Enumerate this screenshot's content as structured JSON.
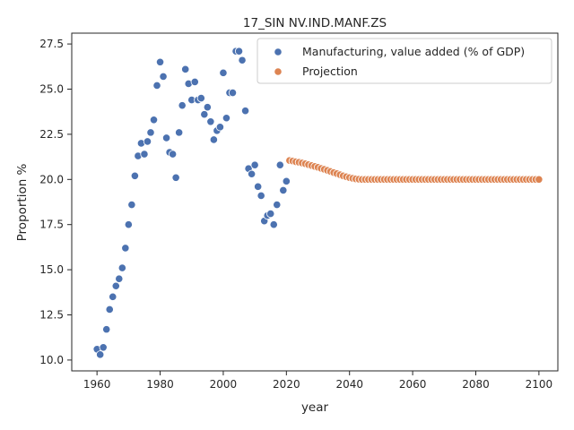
{
  "chart_data": {
    "type": "scatter",
    "title": "17_SIN NV.IND.MANF.ZS",
    "xlabel": "year",
    "ylabel": "Proportion %",
    "xlim": [
      1952,
      2106
    ],
    "ylim": [
      9.4,
      28.1
    ],
    "xticks": [
      1960,
      1980,
      2000,
      2020,
      2040,
      2060,
      2080,
      2100
    ],
    "yticks": [
      10.0,
      12.5,
      15.0,
      17.5,
      20.0,
      22.5,
      25.0,
      27.5
    ],
    "grid": false,
    "legend_position": "top-right",
    "series": [
      {
        "name": "Manufacturing, value added (% of GDP)",
        "color": "#4c72b0",
        "x": [
          1960,
          1961,
          1962,
          1963,
          1964,
          1965,
          1966,
          1967,
          1968,
          1969,
          1970,
          1971,
          1972,
          1973,
          1974,
          1975,
          1976,
          1977,
          1978,
          1979,
          1980,
          1981,
          1982,
          1983,
          1984,
          1985,
          1986,
          1987,
          1988,
          1989,
          1990,
          1991,
          1992,
          1993,
          1994,
          1995,
          1996,
          1997,
          1998,
          1999,
          2000,
          2001,
          2002,
          2003,
          2004,
          2005,
          2006,
          2007,
          2008,
          2009,
          2010,
          2011,
          2012,
          2013,
          2014,
          2015,
          2016,
          2017,
          2018,
          2019,
          2020
        ],
        "y": [
          10.6,
          10.3,
          10.7,
          11.7,
          12.8,
          13.5,
          14.1,
          14.5,
          15.1,
          16.2,
          17.5,
          18.6,
          20.2,
          21.3,
          22.0,
          21.4,
          22.1,
          22.6,
          23.3,
          25.2,
          26.5,
          25.7,
          22.3,
          21.5,
          21.4,
          20.1,
          22.6,
          24.1,
          26.1,
          25.3,
          24.4,
          25.4,
          24.4,
          24.5,
          23.6,
          24.0,
          23.2,
          22.2,
          22.7,
          22.9,
          25.9,
          23.4,
          24.8,
          24.8,
          27.1,
          27.1,
          26.6,
          23.8,
          20.6,
          20.3,
          20.8,
          19.6,
          19.1,
          17.7,
          18.0,
          18.1,
          17.5,
          18.6,
          20.8,
          19.4,
          19.9
        ]
      },
      {
        "name": "Projection",
        "color": "#dd8452",
        "x": [
          2021,
          2022,
          2023,
          2024,
          2025,
          2026,
          2027,
          2028,
          2029,
          2030,
          2031,
          2032,
          2033,
          2034,
          2035,
          2036,
          2037,
          2038,
          2039,
          2040,
          2041,
          2042,
          2043,
          2044,
          2045,
          2046,
          2047,
          2048,
          2049,
          2050,
          2051,
          2052,
          2053,
          2054,
          2055,
          2056,
          2057,
          2058,
          2059,
          2060,
          2061,
          2062,
          2063,
          2064,
          2065,
          2066,
          2067,
          2068,
          2069,
          2070,
          2071,
          2072,
          2073,
          2074,
          2075,
          2076,
          2077,
          2078,
          2079,
          2080,
          2081,
          2082,
          2083,
          2084,
          2085,
          2086,
          2087,
          2088,
          2089,
          2090,
          2091,
          2092,
          2093,
          2094,
          2095,
          2096,
          2097,
          2098,
          2099,
          2100
        ],
        "y": [
          21.05,
          21.02,
          20.98,
          20.95,
          20.91,
          20.87,
          20.82,
          20.77,
          20.72,
          20.67,
          20.61,
          20.56,
          20.5,
          20.44,
          20.38,
          20.32,
          20.26,
          20.2,
          20.15,
          20.1,
          20.06,
          20.03,
          20.01,
          20.0,
          20.0,
          20.0,
          20.0,
          20.0,
          20.0,
          20.0,
          20.0,
          20.0,
          20.0,
          20.0,
          20.0,
          20.0,
          20.0,
          20.0,
          20.0,
          20.0,
          20.0,
          20.0,
          20.0,
          20.0,
          20.0,
          20.0,
          20.0,
          20.0,
          20.0,
          20.0,
          20.0,
          20.0,
          20.0,
          20.0,
          20.0,
          20.0,
          20.0,
          20.0,
          20.0,
          20.0,
          20.0,
          20.0,
          20.0,
          20.0,
          20.0,
          20.0,
          20.0,
          20.0,
          20.0,
          20.0,
          20.0,
          20.0,
          20.0,
          20.0,
          20.0,
          20.0,
          20.0,
          20.0,
          20.0,
          20.0
        ]
      }
    ]
  }
}
